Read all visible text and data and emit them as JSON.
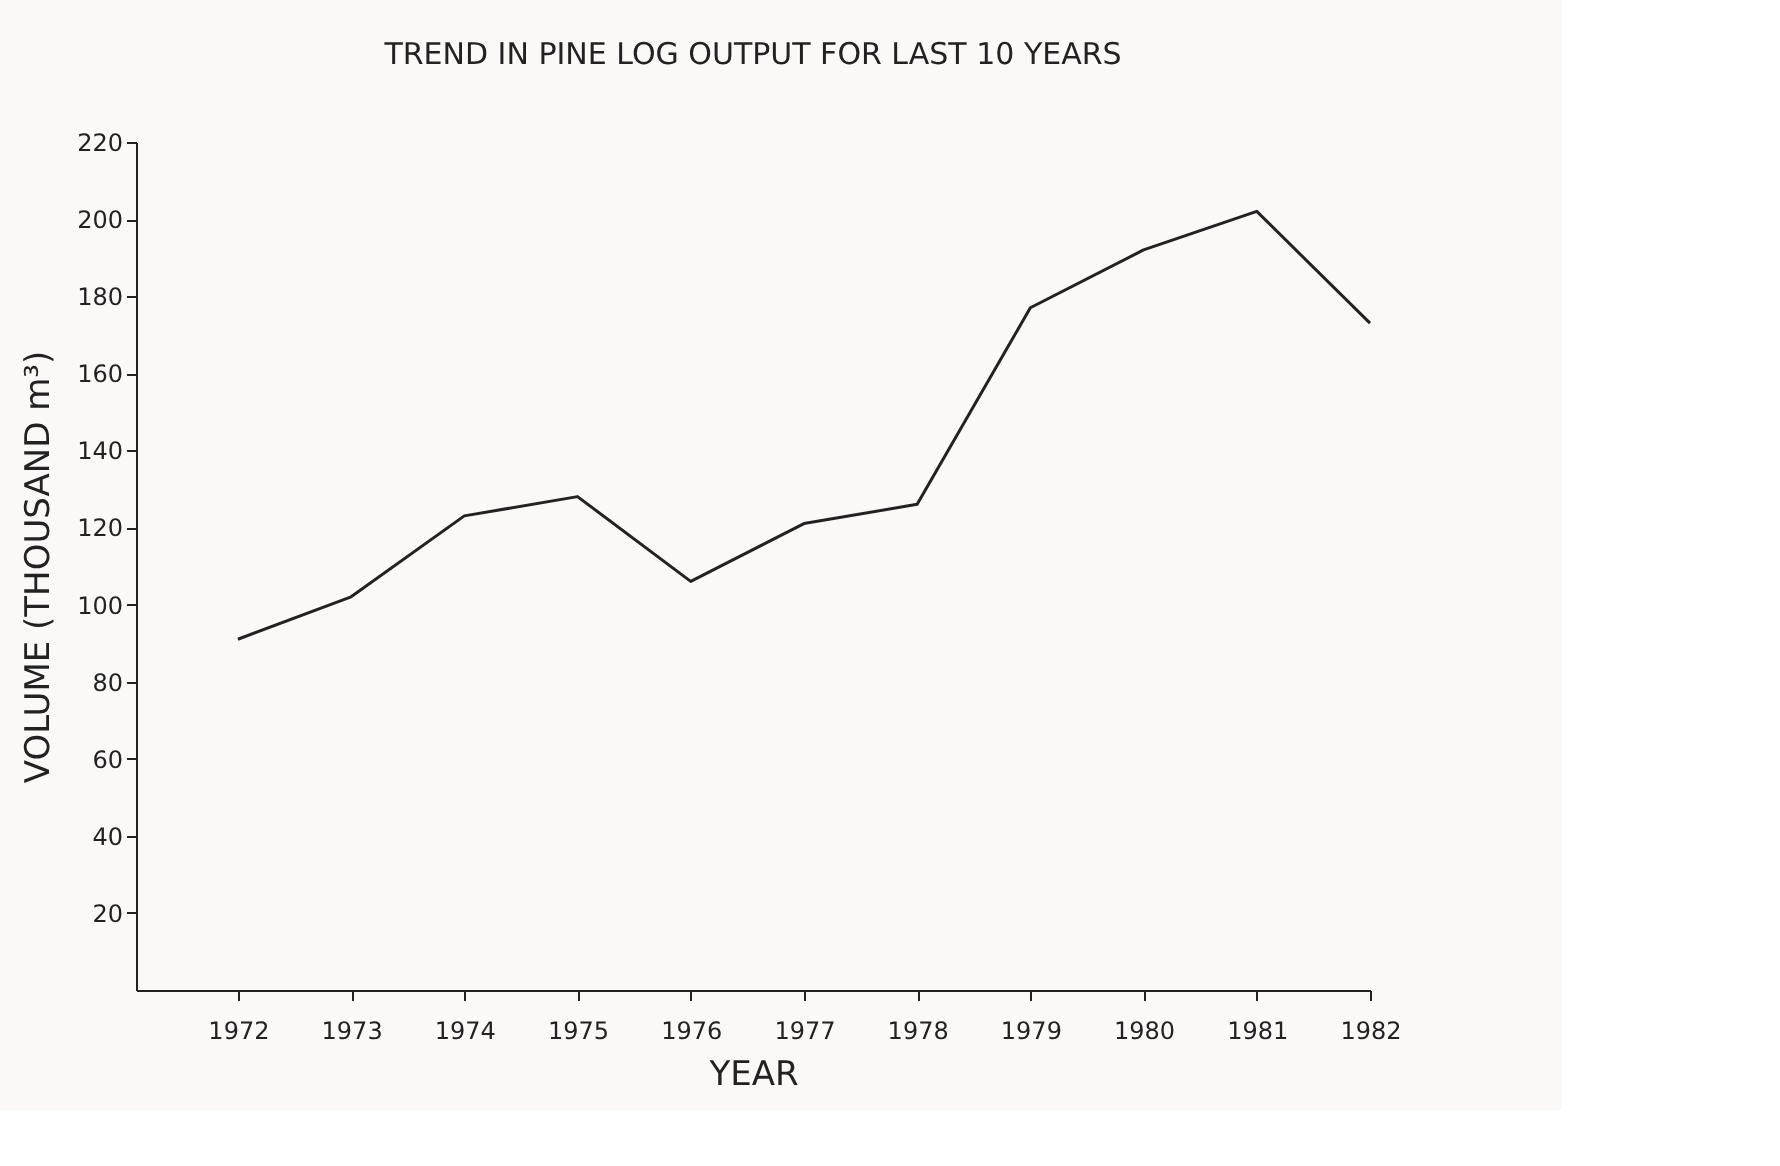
{
  "chart_data": {
    "type": "line",
    "title": "TREND IN PINE LOG OUTPUT FOR LAST 10 YEARS",
    "xlabel": "YEAR",
    "ylabel": "VOLUME (THOUSAND m³)",
    "x": [
      1972,
      1973,
      1974,
      1975,
      1976,
      1977,
      1978,
      1979,
      1980,
      1981,
      1982
    ],
    "series": [
      {
        "color": "#222222",
        "values": [
          91,
          102,
          123,
          128,
          106,
          121,
          126,
          177,
          192,
          202,
          173
        ]
      }
    ],
    "xlim": [
      1971.1,
      1982
    ],
    "xticks": [
      1972,
      1973,
      1974,
      1975,
      1976,
      1977,
      1978,
      1979,
      1980,
      1981,
      1982
    ],
    "ylim": [
      0,
      220
    ],
    "yticks": [
      20,
      40,
      60,
      80,
      100,
      120,
      140,
      160,
      180,
      200,
      220
    ],
    "grid": false,
    "marker": "none",
    "line_style": "solid"
  }
}
